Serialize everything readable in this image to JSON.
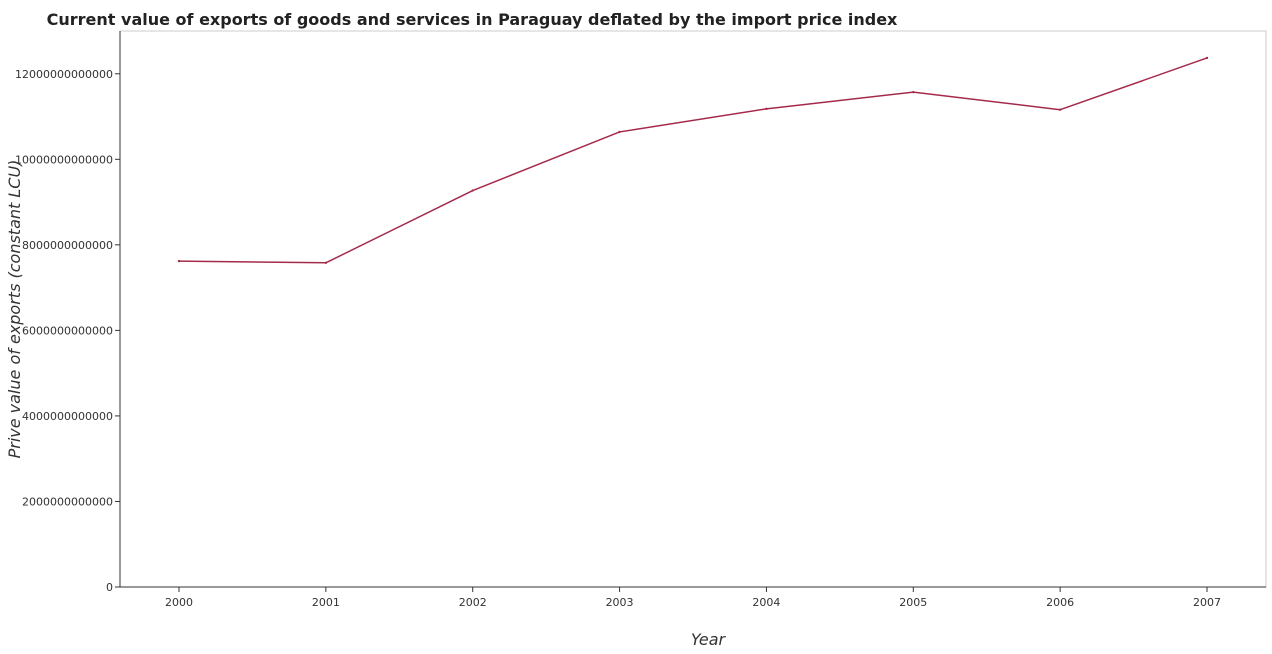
{
  "chart_data": {
    "type": "line",
    "title": "Current value of exports of goods and services in Paraguay deflated by the import price index",
    "xlabel": "Year",
    "ylabel": "Prive value of exports (constant LCU)",
    "categories": [
      "2000",
      "2001",
      "2002",
      "2003",
      "2004",
      "2005",
      "2006",
      "2007"
    ],
    "series": [
      {
        "values": [
          7620000000000,
          7580000000000,
          9270000000000,
          10640000000000,
          11180000000000,
          11570000000000,
          11160000000000,
          12370000000000
        ],
        "color": "#a52a4a"
      }
    ],
    "ylim": [
      0,
      13000000000000
    ],
    "yticks": [
      0,
      2000000000000,
      4000000000000,
      6000000000000,
      8000000000000,
      10000000000000,
      12000000000000
    ],
    "ytick_labels": [
      "0",
      "2000000000000",
      "4000000000000",
      "6000000000000",
      "8000000000000",
      "10000000000000",
      "12000000000000"
    ],
    "grid": false,
    "legend": "none"
  }
}
